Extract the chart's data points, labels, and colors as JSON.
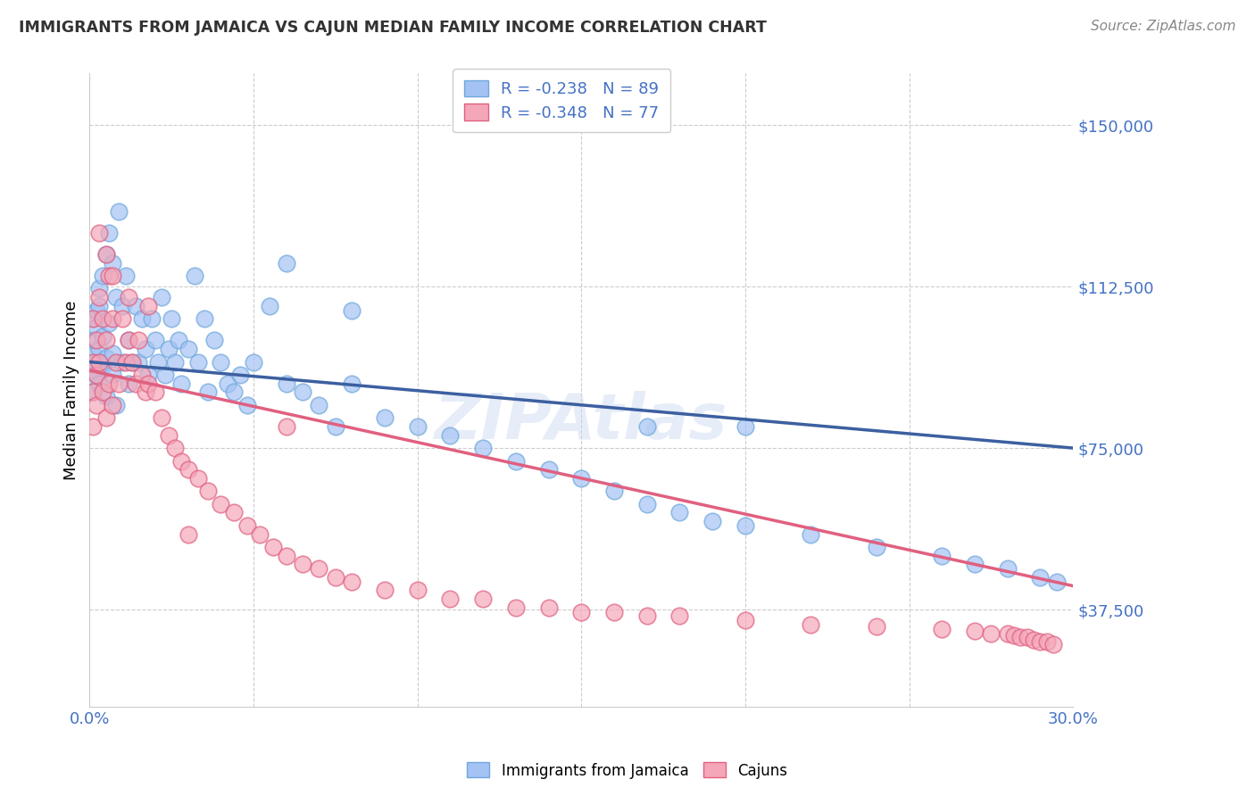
{
  "title": "IMMIGRANTS FROM JAMAICA VS CAJUN MEDIAN FAMILY INCOME CORRELATION CHART",
  "source": "Source: ZipAtlas.com",
  "ylabel": "Median Family Income",
  "y_ticks": [
    37500,
    75000,
    112500,
    150000
  ],
  "y_tick_labels": [
    "$37,500",
    "$75,000",
    "$112,500",
    "$150,000"
  ],
  "x_min": 0.0,
  "x_max": 0.3,
  "y_min": 15000,
  "y_max": 162000,
  "blue_R": -0.238,
  "blue_N": 89,
  "pink_R": -0.348,
  "pink_N": 77,
  "blue_color": "#a4c2f4",
  "blue_edge_color": "#6fa8dc",
  "blue_line_color": "#3c5fa0",
  "pink_color": "#f4a7b9",
  "pink_edge_color": "#e06080",
  "pink_line_color": "#e06080",
  "label_color": "#4472c4",
  "title_color": "#333333",
  "grid_color": "#cccccc",
  "watermark": "ZIPAtlas",
  "legend_blue_label": "R = -0.238   N = 89",
  "legend_pink_label": "R = -0.348   N = 77",
  "blue_trend_x": [
    0.0,
    0.3
  ],
  "blue_trend_y": [
    95000,
    75000
  ],
  "pink_trend_x": [
    0.0,
    0.3
  ],
  "pink_trend_y": [
    93000,
    43000
  ],
  "blue_x": [
    0.001,
    0.001,
    0.001,
    0.001,
    0.001,
    0.002,
    0.002,
    0.002,
    0.002,
    0.003,
    0.003,
    0.003,
    0.003,
    0.004,
    0.004,
    0.004,
    0.005,
    0.005,
    0.005,
    0.006,
    0.006,
    0.007,
    0.007,
    0.007,
    0.008,
    0.008,
    0.009,
    0.01,
    0.01,
    0.011,
    0.012,
    0.012,
    0.013,
    0.014,
    0.015,
    0.016,
    0.017,
    0.018,
    0.019,
    0.02,
    0.021,
    0.022,
    0.023,
    0.024,
    0.025,
    0.026,
    0.027,
    0.028,
    0.03,
    0.032,
    0.033,
    0.035,
    0.036,
    0.038,
    0.04,
    0.042,
    0.044,
    0.046,
    0.048,
    0.05,
    0.055,
    0.06,
    0.065,
    0.07,
    0.075,
    0.08,
    0.09,
    0.1,
    0.11,
    0.12,
    0.13,
    0.14,
    0.15,
    0.16,
    0.17,
    0.18,
    0.19,
    0.2,
    0.22,
    0.24,
    0.26,
    0.27,
    0.28,
    0.29,
    0.295,
    0.06,
    0.08,
    0.17,
    0.2
  ],
  "blue_y": [
    97000,
    93000,
    105000,
    88000,
    100000,
    107000,
    95000,
    103000,
    92000,
    112000,
    98000,
    90000,
    108000,
    115000,
    101000,
    94000,
    120000,
    96000,
    87000,
    125000,
    104000,
    118000,
    97000,
    92000,
    110000,
    85000,
    130000,
    108000,
    95000,
    115000,
    100000,
    90000,
    95000,
    108000,
    95000,
    105000,
    98000,
    92000,
    105000,
    100000,
    95000,
    110000,
    92000,
    98000,
    105000,
    95000,
    100000,
    90000,
    98000,
    115000,
    95000,
    105000,
    88000,
    100000,
    95000,
    90000,
    88000,
    92000,
    85000,
    95000,
    108000,
    90000,
    88000,
    85000,
    80000,
    90000,
    82000,
    80000,
    78000,
    75000,
    72000,
    70000,
    68000,
    65000,
    62000,
    60000,
    58000,
    57000,
    55000,
    52000,
    50000,
    48000,
    47000,
    45000,
    44000,
    118000,
    107000,
    80000,
    80000
  ],
  "pink_x": [
    0.001,
    0.001,
    0.001,
    0.001,
    0.002,
    0.002,
    0.002,
    0.003,
    0.003,
    0.004,
    0.004,
    0.005,
    0.005,
    0.006,
    0.006,
    0.007,
    0.007,
    0.008,
    0.009,
    0.01,
    0.011,
    0.012,
    0.013,
    0.014,
    0.015,
    0.016,
    0.017,
    0.018,
    0.02,
    0.022,
    0.024,
    0.026,
    0.028,
    0.03,
    0.033,
    0.036,
    0.04,
    0.044,
    0.048,
    0.052,
    0.056,
    0.06,
    0.065,
    0.07,
    0.075,
    0.08,
    0.09,
    0.1,
    0.11,
    0.12,
    0.13,
    0.14,
    0.15,
    0.16,
    0.17,
    0.18,
    0.2,
    0.22,
    0.24,
    0.26,
    0.27,
    0.275,
    0.28,
    0.282,
    0.284,
    0.286,
    0.288,
    0.29,
    0.292,
    0.294,
    0.003,
    0.005,
    0.007,
    0.012,
    0.018,
    0.03,
    0.06
  ],
  "pink_y": [
    95000,
    88000,
    105000,
    80000,
    100000,
    92000,
    85000,
    110000,
    95000,
    105000,
    88000,
    100000,
    82000,
    115000,
    90000,
    105000,
    85000,
    95000,
    90000,
    105000,
    95000,
    100000,
    95000,
    90000,
    100000,
    92000,
    88000,
    90000,
    88000,
    82000,
    78000,
    75000,
    72000,
    70000,
    68000,
    65000,
    62000,
    60000,
    57000,
    55000,
    52000,
    50000,
    48000,
    47000,
    45000,
    44000,
    42000,
    42000,
    40000,
    40000,
    38000,
    38000,
    37000,
    37000,
    36000,
    36000,
    35000,
    34000,
    33500,
    33000,
    32500,
    32000,
    32000,
    31500,
    31000,
    31000,
    30500,
    30000,
    30000,
    29500,
    125000,
    120000,
    115000,
    110000,
    108000,
    55000,
    80000
  ]
}
